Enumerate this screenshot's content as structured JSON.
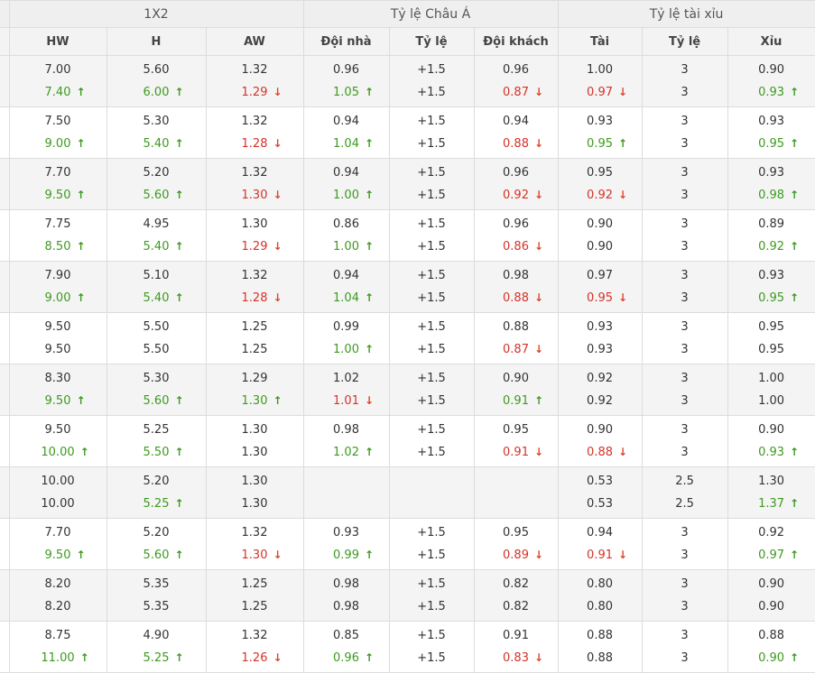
{
  "header": {
    "groups": [
      "1X2",
      "Tỷ lệ Châu Á",
      "Tỷ lệ tài xỉu"
    ],
    "columns": [
      "HW",
      "H",
      "AW",
      "Đội nhà",
      "Tỷ lệ",
      "Đội khách",
      "Tài",
      "Tỷ lệ",
      "Xỉu"
    ]
  },
  "arrow_symbols": {
    "up": "↑",
    "down": "↓"
  },
  "colors": {
    "up": "#3d9a1f",
    "down": "#d4332a",
    "header_bg": "#efefef",
    "row_shade": "#f4f4f4"
  },
  "rows": [
    {
      "shade": true,
      "cells": [
        [
          [
            "7.00",
            ""
          ],
          [
            "7.40",
            "up"
          ]
        ],
        [
          [
            "5.60",
            ""
          ],
          [
            "6.00",
            "up"
          ]
        ],
        [
          [
            "1.32",
            ""
          ],
          [
            "1.29",
            "down"
          ]
        ],
        [
          [
            "0.96",
            ""
          ],
          [
            "1.05",
            "up"
          ]
        ],
        [
          [
            "+1.5",
            ""
          ],
          [
            "+1.5",
            ""
          ]
        ],
        [
          [
            "0.96",
            ""
          ],
          [
            "0.87",
            "down"
          ]
        ],
        [
          [
            "1.00",
            ""
          ],
          [
            "0.97",
            "down"
          ]
        ],
        [
          [
            "3",
            ""
          ],
          [
            "3",
            ""
          ]
        ],
        [
          [
            "0.90",
            ""
          ],
          [
            "0.93",
            "up"
          ]
        ]
      ]
    },
    {
      "shade": false,
      "cells": [
        [
          [
            "7.50",
            ""
          ],
          [
            "9.00",
            "up"
          ]
        ],
        [
          [
            "5.30",
            ""
          ],
          [
            "5.40",
            "up"
          ]
        ],
        [
          [
            "1.32",
            ""
          ],
          [
            "1.28",
            "down"
          ]
        ],
        [
          [
            "0.94",
            ""
          ],
          [
            "1.04",
            "up"
          ]
        ],
        [
          [
            "+1.5",
            ""
          ],
          [
            "+1.5",
            ""
          ]
        ],
        [
          [
            "0.94",
            ""
          ],
          [
            "0.88",
            "down"
          ]
        ],
        [
          [
            "0.93",
            ""
          ],
          [
            "0.95",
            "up"
          ]
        ],
        [
          [
            "3",
            ""
          ],
          [
            "3",
            ""
          ]
        ],
        [
          [
            "0.93",
            ""
          ],
          [
            "0.95",
            "up"
          ]
        ]
      ]
    },
    {
      "shade": true,
      "cells": [
        [
          [
            "7.70",
            ""
          ],
          [
            "9.50",
            "up"
          ]
        ],
        [
          [
            "5.20",
            ""
          ],
          [
            "5.60",
            "up"
          ]
        ],
        [
          [
            "1.32",
            ""
          ],
          [
            "1.30",
            "down"
          ]
        ],
        [
          [
            "0.94",
            ""
          ],
          [
            "1.00",
            "up"
          ]
        ],
        [
          [
            "+1.5",
            ""
          ],
          [
            "+1.5",
            ""
          ]
        ],
        [
          [
            "0.96",
            ""
          ],
          [
            "0.92",
            "down"
          ]
        ],
        [
          [
            "0.95",
            ""
          ],
          [
            "0.92",
            "down"
          ]
        ],
        [
          [
            "3",
            ""
          ],
          [
            "3",
            ""
          ]
        ],
        [
          [
            "0.93",
            ""
          ],
          [
            "0.98",
            "up"
          ]
        ]
      ]
    },
    {
      "shade": false,
      "cells": [
        [
          [
            "7.75",
            ""
          ],
          [
            "8.50",
            "up"
          ]
        ],
        [
          [
            "4.95",
            ""
          ],
          [
            "5.40",
            "up"
          ]
        ],
        [
          [
            "1.30",
            ""
          ],
          [
            "1.29",
            "down"
          ]
        ],
        [
          [
            "0.86",
            ""
          ],
          [
            "1.00",
            "up"
          ]
        ],
        [
          [
            "+1.5",
            ""
          ],
          [
            "+1.5",
            ""
          ]
        ],
        [
          [
            "0.96",
            ""
          ],
          [
            "0.86",
            "down"
          ]
        ],
        [
          [
            "0.90",
            ""
          ],
          [
            "0.90",
            ""
          ]
        ],
        [
          [
            "3",
            ""
          ],
          [
            "3",
            ""
          ]
        ],
        [
          [
            "0.89",
            ""
          ],
          [
            "0.92",
            "up"
          ]
        ]
      ]
    },
    {
      "shade": true,
      "cells": [
        [
          [
            "7.90",
            ""
          ],
          [
            "9.00",
            "up"
          ]
        ],
        [
          [
            "5.10",
            ""
          ],
          [
            "5.40",
            "up"
          ]
        ],
        [
          [
            "1.32",
            ""
          ],
          [
            "1.28",
            "down"
          ]
        ],
        [
          [
            "0.94",
            ""
          ],
          [
            "1.04",
            "up"
          ]
        ],
        [
          [
            "+1.5",
            ""
          ],
          [
            "+1.5",
            ""
          ]
        ],
        [
          [
            "0.98",
            ""
          ],
          [
            "0.88",
            "down"
          ]
        ],
        [
          [
            "0.97",
            ""
          ],
          [
            "0.95",
            "down"
          ]
        ],
        [
          [
            "3",
            ""
          ],
          [
            "3",
            ""
          ]
        ],
        [
          [
            "0.93",
            ""
          ],
          [
            "0.95",
            "up"
          ]
        ]
      ]
    },
    {
      "shade": false,
      "cells": [
        [
          [
            "9.50",
            ""
          ],
          [
            "9.50",
            ""
          ]
        ],
        [
          [
            "5.50",
            ""
          ],
          [
            "5.50",
            ""
          ]
        ],
        [
          [
            "1.25",
            ""
          ],
          [
            "1.25",
            ""
          ]
        ],
        [
          [
            "0.99",
            ""
          ],
          [
            "1.00",
            "up"
          ]
        ],
        [
          [
            "+1.5",
            ""
          ],
          [
            "+1.5",
            ""
          ]
        ],
        [
          [
            "0.88",
            ""
          ],
          [
            "0.87",
            "down"
          ]
        ],
        [
          [
            "0.93",
            ""
          ],
          [
            "0.93",
            ""
          ]
        ],
        [
          [
            "3",
            ""
          ],
          [
            "3",
            ""
          ]
        ],
        [
          [
            "0.95",
            ""
          ],
          [
            "0.95",
            ""
          ]
        ]
      ]
    },
    {
      "shade": true,
      "cells": [
        [
          [
            "8.30",
            ""
          ],
          [
            "9.50",
            "up"
          ]
        ],
        [
          [
            "5.30",
            ""
          ],
          [
            "5.60",
            "up"
          ]
        ],
        [
          [
            "1.29",
            ""
          ],
          [
            "1.30",
            "up"
          ]
        ],
        [
          [
            "1.02",
            ""
          ],
          [
            "1.01",
            "down"
          ]
        ],
        [
          [
            "+1.5",
            ""
          ],
          [
            "+1.5",
            ""
          ]
        ],
        [
          [
            "0.90",
            ""
          ],
          [
            "0.91",
            "up"
          ]
        ],
        [
          [
            "0.92",
            ""
          ],
          [
            "0.92",
            ""
          ]
        ],
        [
          [
            "3",
            ""
          ],
          [
            "3",
            ""
          ]
        ],
        [
          [
            "1.00",
            ""
          ],
          [
            "1.00",
            ""
          ]
        ]
      ]
    },
    {
      "shade": false,
      "cells": [
        [
          [
            "9.50",
            ""
          ],
          [
            "10.00",
            "up"
          ]
        ],
        [
          [
            "5.25",
            ""
          ],
          [
            "5.50",
            "up"
          ]
        ],
        [
          [
            "1.30",
            ""
          ],
          [
            "1.30",
            ""
          ]
        ],
        [
          [
            "0.98",
            ""
          ],
          [
            "1.02",
            "up"
          ]
        ],
        [
          [
            "+1.5",
            ""
          ],
          [
            "+1.5",
            ""
          ]
        ],
        [
          [
            "0.95",
            ""
          ],
          [
            "0.91",
            "down"
          ]
        ],
        [
          [
            "0.90",
            ""
          ],
          [
            "0.88",
            "down"
          ]
        ],
        [
          [
            "3",
            ""
          ],
          [
            "3",
            ""
          ]
        ],
        [
          [
            "0.90",
            ""
          ],
          [
            "0.93",
            "up"
          ]
        ]
      ]
    },
    {
      "shade": true,
      "cells": [
        [
          [
            "10.00",
            ""
          ],
          [
            "10.00",
            ""
          ]
        ],
        [
          [
            "5.20",
            ""
          ],
          [
            "5.25",
            "up"
          ]
        ],
        [
          [
            "1.30",
            ""
          ],
          [
            "1.30",
            ""
          ]
        ],
        [
          [
            "",
            ""
          ],
          [
            "",
            ""
          ]
        ],
        [
          [
            "",
            ""
          ],
          [
            "",
            ""
          ]
        ],
        [
          [
            "",
            ""
          ],
          [
            "",
            ""
          ]
        ],
        [
          [
            "0.53",
            ""
          ],
          [
            "0.53",
            ""
          ]
        ],
        [
          [
            "2.5",
            ""
          ],
          [
            "2.5",
            ""
          ]
        ],
        [
          [
            "1.30",
            ""
          ],
          [
            "1.37",
            "up"
          ]
        ]
      ]
    },
    {
      "shade": false,
      "cells": [
        [
          [
            "7.70",
            ""
          ],
          [
            "9.50",
            "up"
          ]
        ],
        [
          [
            "5.20",
            ""
          ],
          [
            "5.60",
            "up"
          ]
        ],
        [
          [
            "1.32",
            ""
          ],
          [
            "1.30",
            "down"
          ]
        ],
        [
          [
            "0.93",
            ""
          ],
          [
            "0.99",
            "up"
          ]
        ],
        [
          [
            "+1.5",
            ""
          ],
          [
            "+1.5",
            ""
          ]
        ],
        [
          [
            "0.95",
            ""
          ],
          [
            "0.89",
            "down"
          ]
        ],
        [
          [
            "0.94",
            ""
          ],
          [
            "0.91",
            "down"
          ]
        ],
        [
          [
            "3",
            ""
          ],
          [
            "3",
            ""
          ]
        ],
        [
          [
            "0.92",
            ""
          ],
          [
            "0.97",
            "up"
          ]
        ]
      ]
    },
    {
      "shade": true,
      "cells": [
        [
          [
            "8.20",
            ""
          ],
          [
            "8.20",
            ""
          ]
        ],
        [
          [
            "5.35",
            ""
          ],
          [
            "5.35",
            ""
          ]
        ],
        [
          [
            "1.25",
            ""
          ],
          [
            "1.25",
            ""
          ]
        ],
        [
          [
            "0.98",
            ""
          ],
          [
            "0.98",
            ""
          ]
        ],
        [
          [
            "+1.5",
            ""
          ],
          [
            "+1.5",
            ""
          ]
        ],
        [
          [
            "0.82",
            ""
          ],
          [
            "0.82",
            ""
          ]
        ],
        [
          [
            "0.80",
            ""
          ],
          [
            "0.80",
            ""
          ]
        ],
        [
          [
            "3",
            ""
          ],
          [
            "3",
            ""
          ]
        ],
        [
          [
            "0.90",
            ""
          ],
          [
            "0.90",
            ""
          ]
        ]
      ]
    },
    {
      "shade": false,
      "cells": [
        [
          [
            "8.75",
            ""
          ],
          [
            "11.00",
            "up"
          ]
        ],
        [
          [
            "4.90",
            ""
          ],
          [
            "5.25",
            "up"
          ]
        ],
        [
          [
            "1.32",
            ""
          ],
          [
            "1.26",
            "down"
          ]
        ],
        [
          [
            "0.85",
            ""
          ],
          [
            "0.96",
            "up"
          ]
        ],
        [
          [
            "+1.5",
            ""
          ],
          [
            "+1.5",
            ""
          ]
        ],
        [
          [
            "0.91",
            ""
          ],
          [
            "0.83",
            "down"
          ]
        ],
        [
          [
            "0.88",
            ""
          ],
          [
            "0.88",
            ""
          ]
        ],
        [
          [
            "3",
            ""
          ],
          [
            "3",
            ""
          ]
        ],
        [
          [
            "0.88",
            ""
          ],
          [
            "0.90",
            "up"
          ]
        ]
      ]
    }
  ]
}
